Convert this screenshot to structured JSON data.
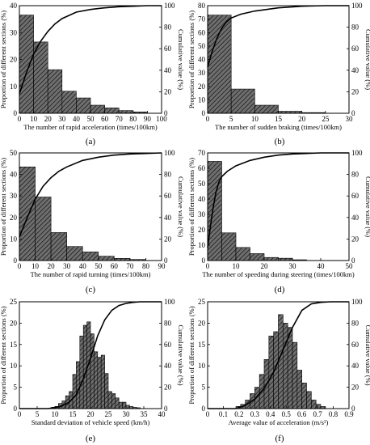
{
  "colors": {
    "bar_fill": "#6f6f6f",
    "bar_hatch": "#1a1a1a",
    "line": "#000000",
    "axis": "#000000"
  },
  "chart_data": [
    {
      "panel": "(a)",
      "type": "bar",
      "xlabel": "The number of rapid acceleration (times/100km)",
      "ylabel": "Proportion of different sections (%)",
      "y2label": "Cumulative value (%)",
      "xlim": [
        0,
        100
      ],
      "xticks": [
        0,
        10,
        20,
        30,
        40,
        50,
        60,
        70,
        80,
        90,
        100
      ],
      "ylim": [
        0,
        40
      ],
      "yticks": [
        0,
        10,
        20,
        30,
        40
      ],
      "y2lim": [
        0,
        100
      ],
      "y2ticks": [
        0,
        20,
        40,
        60,
        80,
        100
      ],
      "bins": [
        [
          0,
          10
        ],
        [
          10,
          20
        ],
        [
          20,
          30
        ],
        [
          30,
          40
        ],
        [
          40,
          50
        ],
        [
          50,
          60
        ],
        [
          60,
          70
        ],
        [
          70,
          80
        ],
        [
          80,
          90
        ]
      ],
      "values": [
        36.5,
        26.5,
        16.2,
        8.2,
        5.7,
        3.0,
        2.0,
        1.0,
        0.5
      ],
      "cumulative": {
        "x": [
          0,
          5,
          10,
          15,
          20,
          25,
          30,
          40,
          50,
          60,
          70,
          80,
          90,
          100
        ],
        "y": [
          18,
          38,
          55,
          67,
          76,
          83,
          88,
          94,
          96.5,
          98,
          99,
          99.5,
          100,
          100
        ]
      }
    },
    {
      "panel": "(b)",
      "type": "bar",
      "xlabel": "The number of sudden braking (times/100km)",
      "ylabel": "Proportion of different sections (%)",
      "y2label": "Cumulative value (%)",
      "xlim": [
        0,
        30
      ],
      "xticks": [
        0,
        5,
        10,
        15,
        20,
        25,
        30
      ],
      "ylim": [
        0,
        80
      ],
      "yticks": [
        0,
        10,
        20,
        30,
        40,
        50,
        60,
        70,
        80
      ],
      "y2lim": [
        0,
        100
      ],
      "y2ticks": [
        0,
        20,
        40,
        60,
        80,
        100
      ],
      "bins": [
        [
          0,
          5
        ],
        [
          5,
          10
        ],
        [
          10,
          15
        ],
        [
          15,
          20
        ],
        [
          20,
          25
        ]
      ],
      "values": [
        73,
        18,
        6,
        1.5,
        0.5
      ],
      "cumulative": {
        "x": [
          0,
          1,
          2,
          3,
          4,
          5,
          7,
          10,
          15,
          20,
          25,
          30
        ],
        "y": [
          43,
          58,
          70,
          79,
          85,
          88.5,
          92,
          95,
          98,
          99.5,
          100,
          100
        ]
      }
    },
    {
      "panel": "(c)",
      "type": "bar",
      "xlabel": "The number of rapid turning (times/100km)",
      "ylabel": "Proportion of different sections (%)",
      "y2label": "Cumulative value (%)",
      "xlim": [
        0,
        90
      ],
      "xticks": [
        0,
        10,
        20,
        30,
        40,
        50,
        60,
        70,
        80,
        90
      ],
      "ylim": [
        0,
        50
      ],
      "yticks": [
        0,
        10,
        20,
        30,
        40,
        50
      ],
      "y2lim": [
        0,
        100
      ],
      "y2ticks": [
        0,
        20,
        40,
        60,
        80,
        100
      ],
      "bins": [
        [
          0,
          10
        ],
        [
          10,
          20
        ],
        [
          20,
          30
        ],
        [
          30,
          40
        ],
        [
          40,
          50
        ],
        [
          50,
          60
        ],
        [
          60,
          70
        ],
        [
          70,
          80
        ]
      ],
      "values": [
        43.5,
        29.5,
        13,
        6.5,
        4,
        2,
        1,
        0.5
      ],
      "cumulative": {
        "x": [
          0,
          5,
          10,
          15,
          20,
          25,
          30,
          40,
          50,
          60,
          70,
          80,
          90
        ],
        "y": [
          22,
          40,
          57,
          69,
          77,
          83,
          87,
          93,
          96,
          98,
          99,
          99.5,
          100
        ]
      }
    },
    {
      "panel": "(d)",
      "type": "bar",
      "xlabel": "The number of speeding during steering (times/100km)",
      "ylabel": "Proportion of different sections (%)",
      "y2label": "Cumulative value (%)",
      "xlim": [
        0,
        50
      ],
      "xticks": [
        0,
        10,
        20,
        30,
        40,
        50
      ],
      "ylim": [
        0,
        70
      ],
      "yticks": [
        0,
        10,
        20,
        30,
        40,
        50,
        60,
        70
      ],
      "y2lim": [
        0,
        100
      ],
      "y2ticks": [
        0,
        20,
        40,
        60,
        80,
        100
      ],
      "bins": [
        [
          0,
          5
        ],
        [
          5,
          10
        ],
        [
          10,
          15
        ],
        [
          15,
          20
        ],
        [
          20,
          25
        ],
        [
          25,
          30
        ],
        [
          30,
          35
        ]
      ],
      "values": [
        64.5,
        18,
        8.5,
        4.5,
        2,
        1.5,
        0.5
      ],
      "cumulative": {
        "x": [
          0,
          1,
          2,
          3,
          4,
          5,
          7,
          10,
          15,
          20,
          25,
          30,
          40,
          50
        ],
        "y": [
          12,
          32,
          50,
          64,
          73,
          78,
          83,
          88,
          93,
          96,
          98,
          99,
          100,
          100
        ]
      }
    },
    {
      "panel": "(e)",
      "type": "bar",
      "xlabel": "Standard deviation of vehicle speed (km/h)",
      "ylabel": "Proportion of different sections (%)",
      "y2label": "Cumulative value (%)",
      "xlim": [
        0,
        40
      ],
      "xticks": [
        0,
        5,
        10,
        15,
        20,
        25,
        30,
        35,
        40
      ],
      "ylim": [
        0,
        25
      ],
      "yticks": [
        0,
        5,
        10,
        15,
        20,
        25
      ],
      "y2lim": [
        0,
        100
      ],
      "y2ticks": [
        0,
        20,
        40,
        60,
        80,
        100
      ],
      "bins": [
        [
          9,
          10
        ],
        [
          10,
          11
        ],
        [
          11,
          12
        ],
        [
          12,
          13
        ],
        [
          13,
          14
        ],
        [
          14,
          15
        ],
        [
          15,
          16
        ],
        [
          16,
          17
        ],
        [
          17,
          18
        ],
        [
          18,
          19
        ],
        [
          19,
          20
        ],
        [
          20,
          21
        ],
        [
          21,
          22
        ],
        [
          22,
          23
        ],
        [
          23,
          24
        ],
        [
          24,
          25
        ],
        [
          25,
          26
        ],
        [
          26,
          27
        ],
        [
          27,
          28
        ],
        [
          28,
          29
        ],
        [
          29,
          30
        ],
        [
          30,
          31
        ],
        [
          31,
          32
        ],
        [
          32,
          33
        ],
        [
          33,
          34
        ]
      ],
      "values": [
        0.3,
        0.5,
        1.2,
        1.8,
        3.0,
        4.0,
        8.0,
        11.0,
        17.0,
        19.5,
        20.3,
        17.5,
        13.3,
        12.0,
        12.5,
        8.2,
        4.0,
        3.5,
        2.5,
        1.5,
        1.5,
        0.8,
        0.5,
        0.3,
        0.2
      ],
      "cumulative": {
        "x": [
          0,
          8,
          10,
          12,
          14,
          16,
          18,
          20,
          22,
          24,
          26,
          28,
          30,
          32,
          34,
          40
        ],
        "y": [
          0,
          0,
          1,
          2.5,
          6,
          13,
          28,
          47,
          68,
          83,
          92,
          96.5,
          98.5,
          99.5,
          100,
          100
        ]
      }
    },
    {
      "panel": "(f)",
      "type": "bar",
      "xlabel": "Average value of acceleration (m/s²)",
      "ylabel": "Proportion of different sections (%)",
      "y2label": "Cumulative value (%)",
      "xlim": [
        0,
        0.9
      ],
      "xticks": [
        0,
        0.1,
        0.2,
        0.3,
        0.4,
        0.5,
        0.6,
        0.7,
        0.8,
        0.9
      ],
      "ylim": [
        0,
        25
      ],
      "yticks": [
        0,
        5,
        10,
        15,
        20,
        25
      ],
      "y2lim": [
        0,
        100
      ],
      "y2ticks": [
        0,
        20,
        40,
        60,
        80,
        100
      ],
      "bins": [
        [
          0.18,
          0.21
        ],
        [
          0.21,
          0.24
        ],
        [
          0.24,
          0.27
        ],
        [
          0.27,
          0.3
        ],
        [
          0.3,
          0.33
        ],
        [
          0.33,
          0.36
        ],
        [
          0.36,
          0.39
        ],
        [
          0.39,
          0.42
        ],
        [
          0.42,
          0.45
        ],
        [
          0.45,
          0.48
        ],
        [
          0.48,
          0.51
        ],
        [
          0.51,
          0.54
        ],
        [
          0.54,
          0.57
        ],
        [
          0.57,
          0.6
        ],
        [
          0.6,
          0.63
        ],
        [
          0.63,
          0.66
        ],
        [
          0.66,
          0.69
        ],
        [
          0.69,
          0.72
        ],
        [
          0.72,
          0.75
        ]
      ],
      "values": [
        0.5,
        1,
        2,
        3.5,
        5,
        8,
        11.5,
        17,
        18,
        22,
        20,
        19,
        15.5,
        9,
        6,
        4,
        2,
        1,
        0.5
      ],
      "cumulative": {
        "x": [
          0,
          0.18,
          0.24,
          0.3,
          0.36,
          0.42,
          0.48,
          0.54,
          0.6,
          0.66,
          0.72,
          0.78,
          0.9
        ],
        "y": [
          0,
          0,
          3,
          9,
          19,
          34,
          55,
          76,
          92,
          98,
          99.5,
          100,
          100
        ]
      }
    }
  ]
}
